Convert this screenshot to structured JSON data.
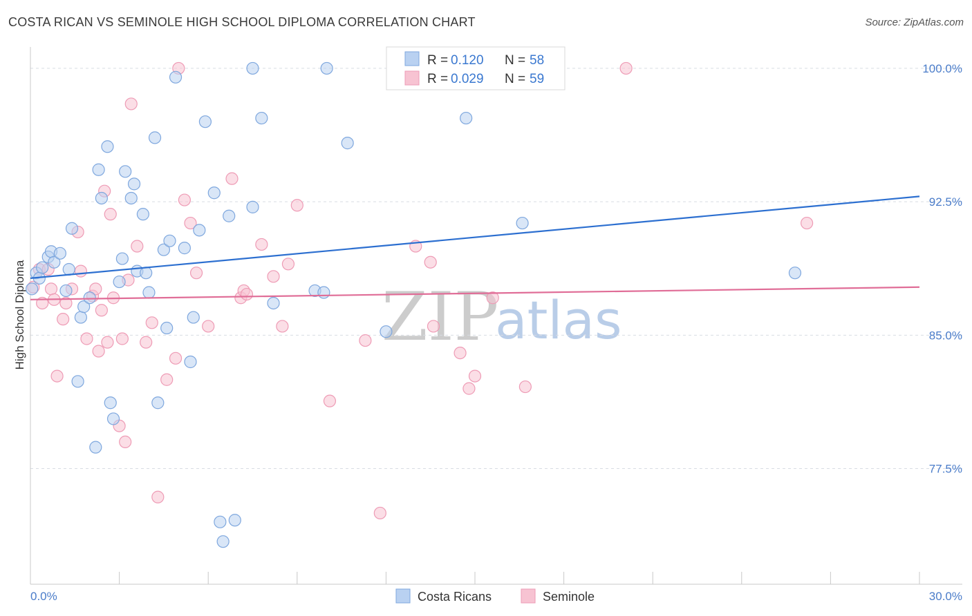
{
  "title": "COSTA RICAN VS SEMINOLE HIGH SCHOOL DIPLOMA CORRELATION CHART",
  "source": "Source: ZipAtlas.com",
  "watermark": {
    "zip": "ZIP",
    "atlas": "atlas"
  },
  "colors": {
    "blue_fill": "#b9d1f1",
    "blue_stroke": "#7ea7de",
    "blue_line": "#2c6fd0",
    "pink_fill": "#f7c3d2",
    "pink_stroke": "#ee9bb5",
    "pink_line": "#e06d97",
    "grid": "#d8dce3",
    "axis_text": "#4a7cc9"
  },
  "legend": {
    "rows": [
      {
        "r_label": "R =",
        "r_value": "0.120",
        "n_label": "N =",
        "n_value": "58"
      },
      {
        "r_label": "R =",
        "r_value": "0.029",
        "n_label": "N =",
        "n_value": "59"
      }
    ]
  },
  "bottom_legend": {
    "series1": "Costa Ricans",
    "series2": "Seminole"
  },
  "chart_data": {
    "type": "scatter",
    "xlabel": "",
    "ylabel": "High School Diploma",
    "xlim": [
      0,
      30
    ],
    "ylim": [
      71,
      101.2
    ],
    "x_tick_labels": [
      "0.0%",
      "30.0%"
    ],
    "y_ticks": [
      {
        "value": 100.0,
        "label": "100.0%"
      },
      {
        "value": 92.5,
        "label": "92.5%"
      },
      {
        "value": 85.0,
        "label": "85.0%"
      },
      {
        "value": 77.5,
        "label": "77.5%"
      }
    ],
    "series": [
      {
        "name": "Costa Ricans",
        "r": 0.12,
        "n": 58,
        "trend": {
          "x0": 0,
          "y0": 88.2,
          "x1": 30,
          "y1": 92.8
        },
        "points": [
          [
            0.2,
            88.5
          ],
          [
            0.3,
            88.2
          ],
          [
            0.4,
            88.8
          ],
          [
            0.6,
            89.4
          ],
          [
            0.7,
            89.7
          ],
          [
            0.8,
            89.1
          ],
          [
            1.0,
            89.6
          ],
          [
            1.2,
            87.5
          ],
          [
            1.3,
            88.7
          ],
          [
            1.4,
            91.0
          ],
          [
            1.7,
            86.0
          ],
          [
            1.8,
            86.6
          ],
          [
            2.0,
            87.1
          ],
          [
            1.6,
            82.4
          ],
          [
            2.3,
            94.3
          ],
          [
            2.4,
            92.7
          ],
          [
            2.6,
            95.6
          ],
          [
            2.7,
            81.2
          ],
          [
            2.8,
            80.3
          ],
          [
            2.2,
            78.7
          ],
          [
            3.0,
            88.0
          ],
          [
            3.1,
            89.3
          ],
          [
            3.2,
            94.2
          ],
          [
            3.4,
            92.7
          ],
          [
            3.5,
            93.5
          ],
          [
            3.6,
            88.6
          ],
          [
            3.8,
            91.8
          ],
          [
            3.9,
            88.5
          ],
          [
            4.0,
            87.4
          ],
          [
            4.2,
            96.1
          ],
          [
            4.3,
            81.2
          ],
          [
            4.5,
            89.8
          ],
          [
            4.6,
            85.4
          ],
          [
            4.7,
            90.3
          ],
          [
            4.9,
            99.5
          ],
          [
            5.2,
            89.9
          ],
          [
            5.4,
            83.5
          ],
          [
            5.5,
            86.0
          ],
          [
            5.7,
            90.9
          ],
          [
            5.9,
            97.0
          ],
          [
            6.2,
            93.0
          ],
          [
            6.4,
            74.5
          ],
          [
            6.5,
            73.4
          ],
          [
            6.7,
            91.7
          ],
          [
            6.9,
            74.6
          ],
          [
            7.5,
            100.0
          ],
          [
            7.5,
            92.2
          ],
          [
            7.8,
            97.2
          ],
          [
            8.2,
            86.8
          ],
          [
            10.0,
            100.0
          ],
          [
            9.6,
            87.5
          ],
          [
            9.9,
            87.4
          ],
          [
            10.7,
            95.8
          ],
          [
            12.0,
            85.2
          ],
          [
            14.7,
            97.2
          ],
          [
            16.6,
            91.3
          ],
          [
            25.8,
            88.5
          ],
          [
            0.05,
            87.6
          ]
        ]
      },
      {
        "name": "Seminole",
        "r": 0.029,
        "n": 59,
        "trend": {
          "x0": 0,
          "y0": 87.0,
          "x1": 30,
          "y1": 87.7
        },
        "points": [
          [
            0.1,
            87.7
          ],
          [
            0.3,
            88.7
          ],
          [
            0.4,
            86.8
          ],
          [
            0.6,
            88.7
          ],
          [
            0.7,
            87.6
          ],
          [
            0.8,
            87.0
          ],
          [
            0.9,
            82.7
          ],
          [
            1.1,
            85.9
          ],
          [
            1.2,
            86.8
          ],
          [
            1.4,
            87.6
          ],
          [
            1.6,
            90.8
          ],
          [
            1.7,
            88.6
          ],
          [
            1.9,
            84.8
          ],
          [
            2.1,
            87.2
          ],
          [
            2.2,
            87.6
          ],
          [
            2.3,
            84.1
          ],
          [
            2.4,
            86.4
          ],
          [
            2.5,
            93.1
          ],
          [
            2.6,
            84.6
          ],
          [
            2.7,
            91.8
          ],
          [
            2.8,
            87.1
          ],
          [
            3.0,
            79.9
          ],
          [
            3.1,
            84.8
          ],
          [
            3.2,
            79.0
          ],
          [
            3.3,
            88.1
          ],
          [
            3.4,
            98.0
          ],
          [
            3.6,
            90.0
          ],
          [
            3.9,
            84.6
          ],
          [
            4.1,
            85.7
          ],
          [
            4.3,
            75.9
          ],
          [
            4.6,
            82.5
          ],
          [
            4.9,
            83.7
          ],
          [
            5.0,
            100.0
          ],
          [
            5.2,
            92.6
          ],
          [
            5.4,
            91.3
          ],
          [
            5.6,
            88.5
          ],
          [
            6.0,
            85.5
          ],
          [
            6.8,
            93.8
          ],
          [
            7.1,
            87.1
          ],
          [
            7.2,
            87.5
          ],
          [
            7.3,
            87.3
          ],
          [
            7.8,
            90.1
          ],
          [
            8.2,
            88.3
          ],
          [
            8.5,
            85.5
          ],
          [
            8.7,
            89.0
          ],
          [
            9.0,
            92.3
          ],
          [
            10.1,
            81.3
          ],
          [
            11.3,
            84.7
          ],
          [
            11.8,
            75.0
          ],
          [
            13.0,
            90.0
          ],
          [
            13.5,
            89.1
          ],
          [
            13.6,
            85.5
          ],
          [
            14.5,
            84.0
          ],
          [
            14.8,
            82.0
          ],
          [
            15.0,
            82.7
          ],
          [
            15.6,
            87.1
          ],
          [
            16.7,
            82.1
          ],
          [
            20.1,
            100.0
          ],
          [
            26.2,
            91.3
          ]
        ]
      }
    ]
  }
}
